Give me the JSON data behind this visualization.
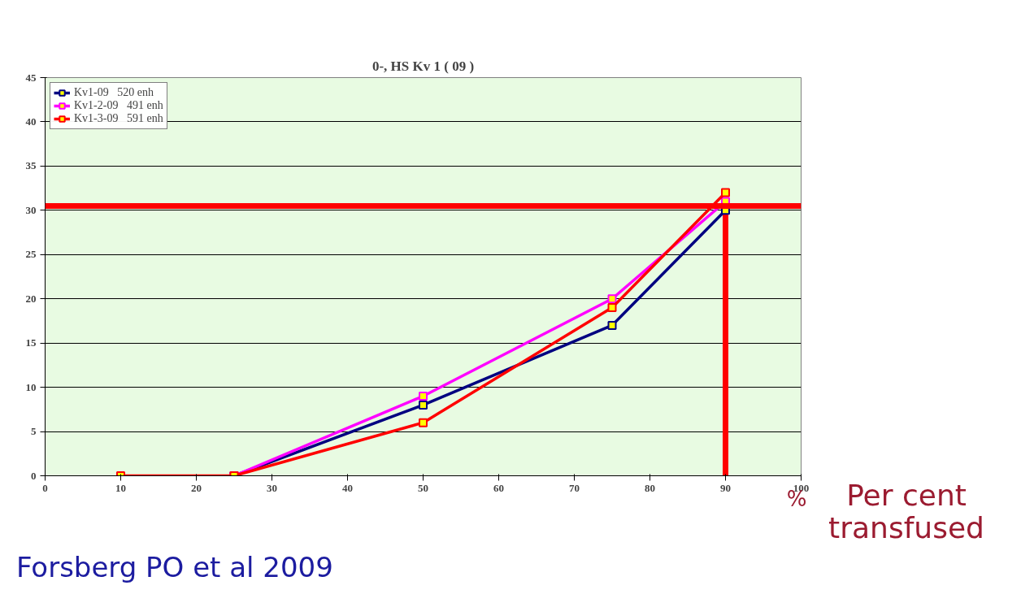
{
  "chart_data": {
    "type": "line",
    "title": "0-, HS Kv 1 ( 09 )",
    "xlim": [
      0,
      100
    ],
    "xticks": [
      0,
      10,
      20,
      30,
      40,
      50,
      60,
      70,
      80,
      90,
      100
    ],
    "ylim": [
      0,
      45
    ],
    "yticks": [
      0,
      5,
      10,
      15,
      20,
      25,
      30,
      35,
      40,
      45
    ],
    "grid": "y",
    "legend": "top left",
    "marker": "square",
    "line_style": "solid",
    "series": [
      {
        "name": "Kv1-09   520 enh",
        "color": "#000080",
        "x": [
          25,
          50,
          75,
          90
        ],
        "values": [
          0,
          8,
          17,
          30
        ]
      },
      {
        "name": "Kv1-2-09   491 enh",
        "color": "#ff00ff",
        "x": [
          25,
          50,
          75,
          90
        ],
        "values": [
          0,
          9,
          20,
          31
        ]
      },
      {
        "name": "Kv1-3-09   591 enh",
        "color": "#ff0000",
        "x": [
          10,
          25,
          50,
          75,
          90
        ],
        "values": [
          0,
          0,
          6,
          19,
          32
        ]
      }
    ],
    "ref_lines": [
      {
        "axis": "y",
        "value": 30.5,
        "color": "#ff0000"
      },
      {
        "axis": "x",
        "value": 90,
        "color": "#ff0000"
      }
    ],
    "annotations": [
      "%",
      "Per cent transfused",
      "Forsberg PO et al 2009"
    ]
  }
}
